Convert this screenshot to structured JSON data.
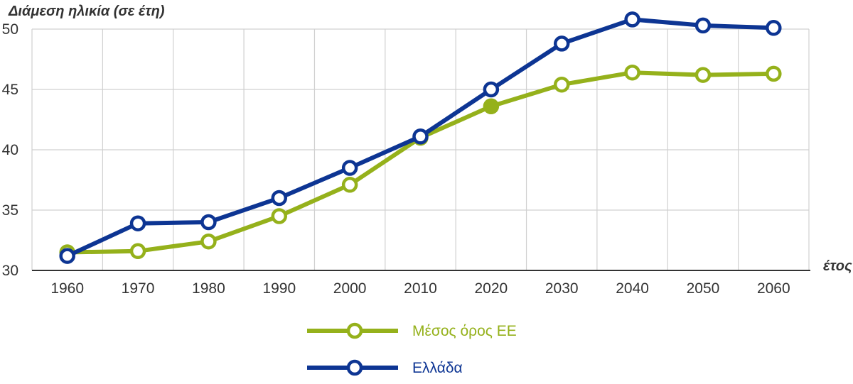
{
  "chart_data": {
    "type": "line",
    "ylabel": "Διάμεση ηλικία (σε έτη)",
    "xlabel": "έτος",
    "x": [
      1960,
      1970,
      1980,
      1990,
      2000,
      2010,
      2020,
      2030,
      2040,
      2050,
      2060
    ],
    "ylim": [
      30,
      50
    ],
    "yticks": [
      30,
      35,
      40,
      45,
      50
    ],
    "grid": true,
    "legend_position": "bottom-center",
    "series": [
      {
        "name": "Μέσος όρος ΕΕ",
        "color": "#95b11b",
        "values": [
          31.5,
          31.6,
          32.4,
          34.5,
          37.1,
          41.0,
          43.6,
          45.4,
          46.4,
          46.2,
          46.3
        ],
        "filled_points": [
          2020
        ]
      },
      {
        "name": "Ελλάδα",
        "color": "#0d3593",
        "values": [
          31.2,
          33.9,
          34.0,
          36.0,
          38.5,
          41.1,
          45.0,
          48.8,
          50.8,
          50.3,
          50.1
        ],
        "filled_points": []
      }
    ]
  }
}
